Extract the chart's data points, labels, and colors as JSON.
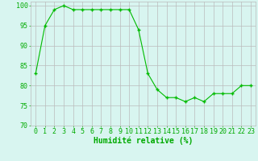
{
  "x": [
    0,
    1,
    2,
    3,
    4,
    5,
    6,
    7,
    8,
    9,
    10,
    11,
    12,
    13,
    14,
    15,
    16,
    17,
    18,
    19,
    20,
    21,
    22,
    23
  ],
  "y": [
    83,
    95,
    99,
    100,
    99,
    99,
    99,
    99,
    99,
    99,
    99,
    94,
    83,
    79,
    77,
    77,
    76,
    77,
    76,
    78,
    78,
    78,
    80,
    80
  ],
  "line_color": "#00bb00",
  "marker": "+",
  "marker_size": 3,
  "bg_color": "#d8f5f0",
  "grid_color": "#bbbbbb",
  "xlabel": "Humidité relative (%)",
  "xlabel_color": "#00aa00",
  "xlabel_fontsize": 7,
  "tick_color": "#00aa00",
  "tick_fontsize": 6,
  "ylim": [
    70,
    101
  ],
  "xlim": [
    -0.5,
    23.5
  ],
  "yticks": [
    70,
    75,
    80,
    85,
    90,
    95,
    100
  ],
  "xticks": [
    0,
    1,
    2,
    3,
    4,
    5,
    6,
    7,
    8,
    9,
    10,
    11,
    12,
    13,
    14,
    15,
    16,
    17,
    18,
    19,
    20,
    21,
    22,
    23
  ]
}
